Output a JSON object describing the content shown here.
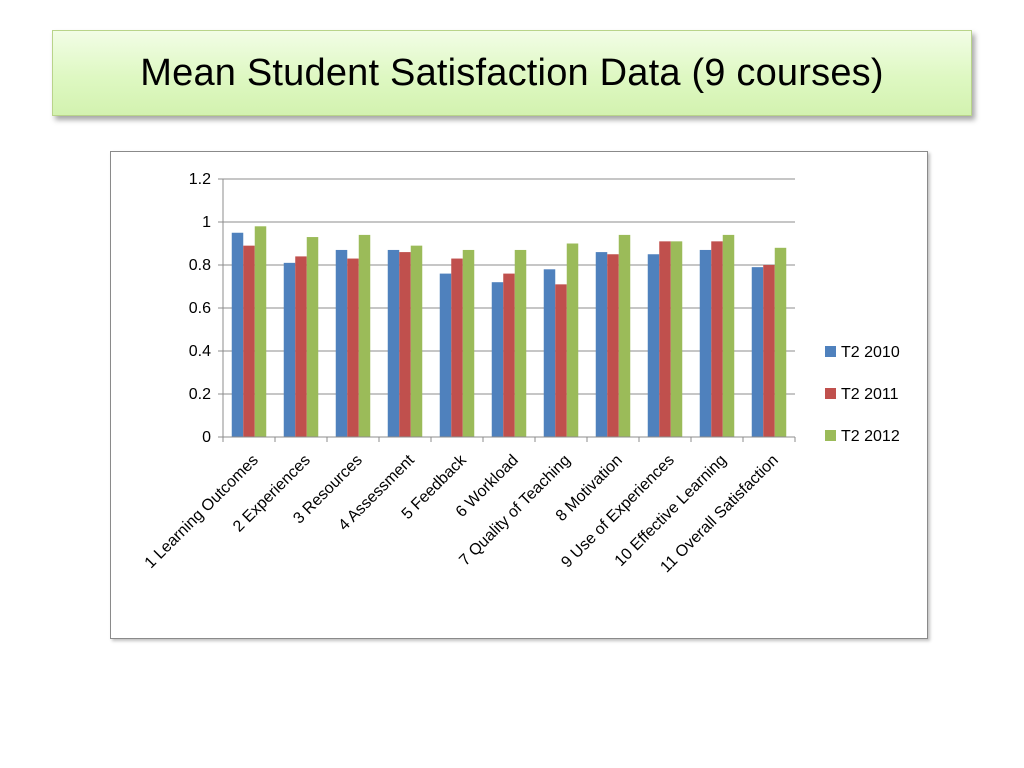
{
  "slide": {
    "title": "Mean Student Satisfaction Data (9 courses)"
  },
  "chart_data": {
    "type": "bar",
    "categories": [
      "1 Learning Outcomes",
      "2 Experiences",
      "3 Resources",
      "4 Assessment",
      "5 Feedback",
      "6 Workload",
      "7 Quality of Teaching",
      "8 Motivation",
      "9 Use of Experiences",
      "10 Effective Learning",
      "11 Overall Satisfaction"
    ],
    "series": [
      {
        "name": "T2 2010",
        "color": "#4f81bd",
        "values": [
          0.95,
          0.81,
          0.87,
          0.87,
          0.76,
          0.72,
          0.78,
          0.86,
          0.85,
          0.87,
          0.79
        ]
      },
      {
        "name": "T2 2011",
        "color": "#c0504d",
        "values": [
          0.89,
          0.84,
          0.83,
          0.86,
          0.83,
          0.76,
          0.71,
          0.85,
          0.91,
          0.91,
          0.8
        ]
      },
      {
        "name": "T2 2012",
        "color": "#9bbb59",
        "values": [
          0.98,
          0.93,
          0.94,
          0.89,
          0.87,
          0.87,
          0.9,
          0.94,
          0.91,
          0.94,
          0.88
        ]
      }
    ],
    "ylim": [
      0,
      1.2
    ],
    "yticks": [
      "0",
      "0.2",
      "0.4",
      "0.6",
      "0.8",
      "1",
      "1.2"
    ],
    "grid": true,
    "legend_position": "right"
  }
}
